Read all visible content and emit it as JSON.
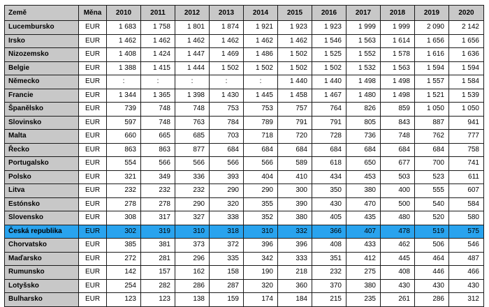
{
  "table": {
    "headers": [
      "Země",
      "Měna",
      "2010",
      "2011",
      "2012",
      "2013",
      "2014",
      "2015",
      "2016",
      "2017",
      "2018",
      "2019",
      "2020"
    ],
    "highlight_color": "#29a3ee",
    "header_color": "#c8c8c8",
    "rows": [
      {
        "country": "Lucembursko",
        "currency": "EUR",
        "values": [
          "1 683",
          "1 758",
          "1 801",
          "1 874",
          "1 921",
          "1 923",
          "1 923",
          "1 999",
          "1 999",
          "2 090",
          "2 142"
        ],
        "highlighted": false
      },
      {
        "country": "Irsko",
        "currency": "EUR",
        "values": [
          "1 462",
          "1 462",
          "1 462",
          "1 462",
          "1 462",
          "1 462",
          "1 546",
          "1 563",
          "1 614",
          "1 656",
          "1 656"
        ],
        "highlighted": false
      },
      {
        "country": "Nizozemsko",
        "currency": "EUR",
        "values": [
          "1 408",
          "1 424",
          "1 447",
          "1 469",
          "1 486",
          "1 502",
          "1 525",
          "1 552",
          "1 578",
          "1 616",
          "1 636"
        ],
        "highlighted": false
      },
      {
        "country": "Belgie",
        "currency": "EUR",
        "values": [
          "1 388",
          "1 415",
          "1 444",
          "1 502",
          "1 502",
          "1 502",
          "1 502",
          "1 532",
          "1 563",
          "1 594",
          "1 594"
        ],
        "highlighted": false
      },
      {
        "country": "Německo",
        "currency": "EUR",
        "values": [
          ":",
          ":",
          ":",
          ":",
          ":",
          "1 440",
          "1 440",
          "1 498",
          "1 498",
          "1 557",
          "1 584"
        ],
        "highlighted": false
      },
      {
        "country": "Francie",
        "currency": "EUR",
        "values": [
          "1 344",
          "1 365",
          "1 398",
          "1 430",
          "1 445",
          "1 458",
          "1 467",
          "1 480",
          "1 498",
          "1 521",
          "1 539"
        ],
        "highlighted": false
      },
      {
        "country": "Španělsko",
        "currency": "EUR",
        "values": [
          "739",
          "748",
          "748",
          "753",
          "753",
          "757",
          "764",
          "826",
          "859",
          "1 050",
          "1 050"
        ],
        "highlighted": false
      },
      {
        "country": "Slovinsko",
        "currency": "EUR",
        "values": [
          "597",
          "748",
          "763",
          "784",
          "789",
          "791",
          "791",
          "805",
          "843",
          "887",
          "941"
        ],
        "highlighted": false
      },
      {
        "country": "Malta",
        "currency": "EUR",
        "values": [
          "660",
          "665",
          "685",
          "703",
          "718",
          "720",
          "728",
          "736",
          "748",
          "762",
          "777"
        ],
        "highlighted": false
      },
      {
        "country": "Řecko",
        "currency": "EUR",
        "values": [
          "863",
          "863",
          "877",
          "684",
          "684",
          "684",
          "684",
          "684",
          "684",
          "684",
          "758"
        ],
        "highlighted": false
      },
      {
        "country": "Portugalsko",
        "currency": "EUR",
        "values": [
          "554",
          "566",
          "566",
          "566",
          "566",
          "589",
          "618",
          "650",
          "677",
          "700",
          "741"
        ],
        "highlighted": false
      },
      {
        "country": "Polsko",
        "currency": "EUR",
        "values": [
          "321",
          "349",
          "336",
          "393",
          "404",
          "410",
          "434",
          "453",
          "503",
          "523",
          "611"
        ],
        "highlighted": false
      },
      {
        "country": "Litva",
        "currency": "EUR",
        "values": [
          "232",
          "232",
          "232",
          "290",
          "290",
          "300",
          "350",
          "380",
          "400",
          "555",
          "607"
        ],
        "highlighted": false
      },
      {
        "country": "Estónsko",
        "currency": "EUR",
        "values": [
          "278",
          "278",
          "290",
          "320",
          "355",
          "390",
          "430",
          "470",
          "500",
          "540",
          "584"
        ],
        "highlighted": false
      },
      {
        "country": "Slovensko",
        "currency": "EUR",
        "values": [
          "308",
          "317",
          "327",
          "338",
          "352",
          "380",
          "405",
          "435",
          "480",
          "520",
          "580"
        ],
        "highlighted": false
      },
      {
        "country": "Česká republika",
        "currency": "EUR",
        "values": [
          "302",
          "319",
          "310",
          "318",
          "310",
          "332",
          "366",
          "407",
          "478",
          "519",
          "575"
        ],
        "highlighted": true
      },
      {
        "country": "Chorvatsko",
        "currency": "EUR",
        "values": [
          "385",
          "381",
          "373",
          "372",
          "396",
          "396",
          "408",
          "433",
          "462",
          "506",
          "546"
        ],
        "highlighted": false
      },
      {
        "country": "Maďarsko",
        "currency": "EUR",
        "values": [
          "272",
          "281",
          "296",
          "335",
          "342",
          "333",
          "351",
          "412",
          "445",
          "464",
          "487"
        ],
        "highlighted": false
      },
      {
        "country": "Rumunsko",
        "currency": "EUR",
        "values": [
          "142",
          "157",
          "162",
          "158",
          "190",
          "218",
          "232",
          "275",
          "408",
          "446",
          "466"
        ],
        "highlighted": false
      },
      {
        "country": "Lotyšsko",
        "currency": "EUR",
        "values": [
          "254",
          "282",
          "286",
          "287",
          "320",
          "360",
          "370",
          "380",
          "430",
          "430",
          "430"
        ],
        "highlighted": false
      },
      {
        "country": "Bulharsko",
        "currency": "EUR",
        "values": [
          "123",
          "123",
          "138",
          "159",
          "174",
          "184",
          "215",
          "235",
          "261",
          "286",
          "312"
        ],
        "highlighted": false
      }
    ]
  }
}
